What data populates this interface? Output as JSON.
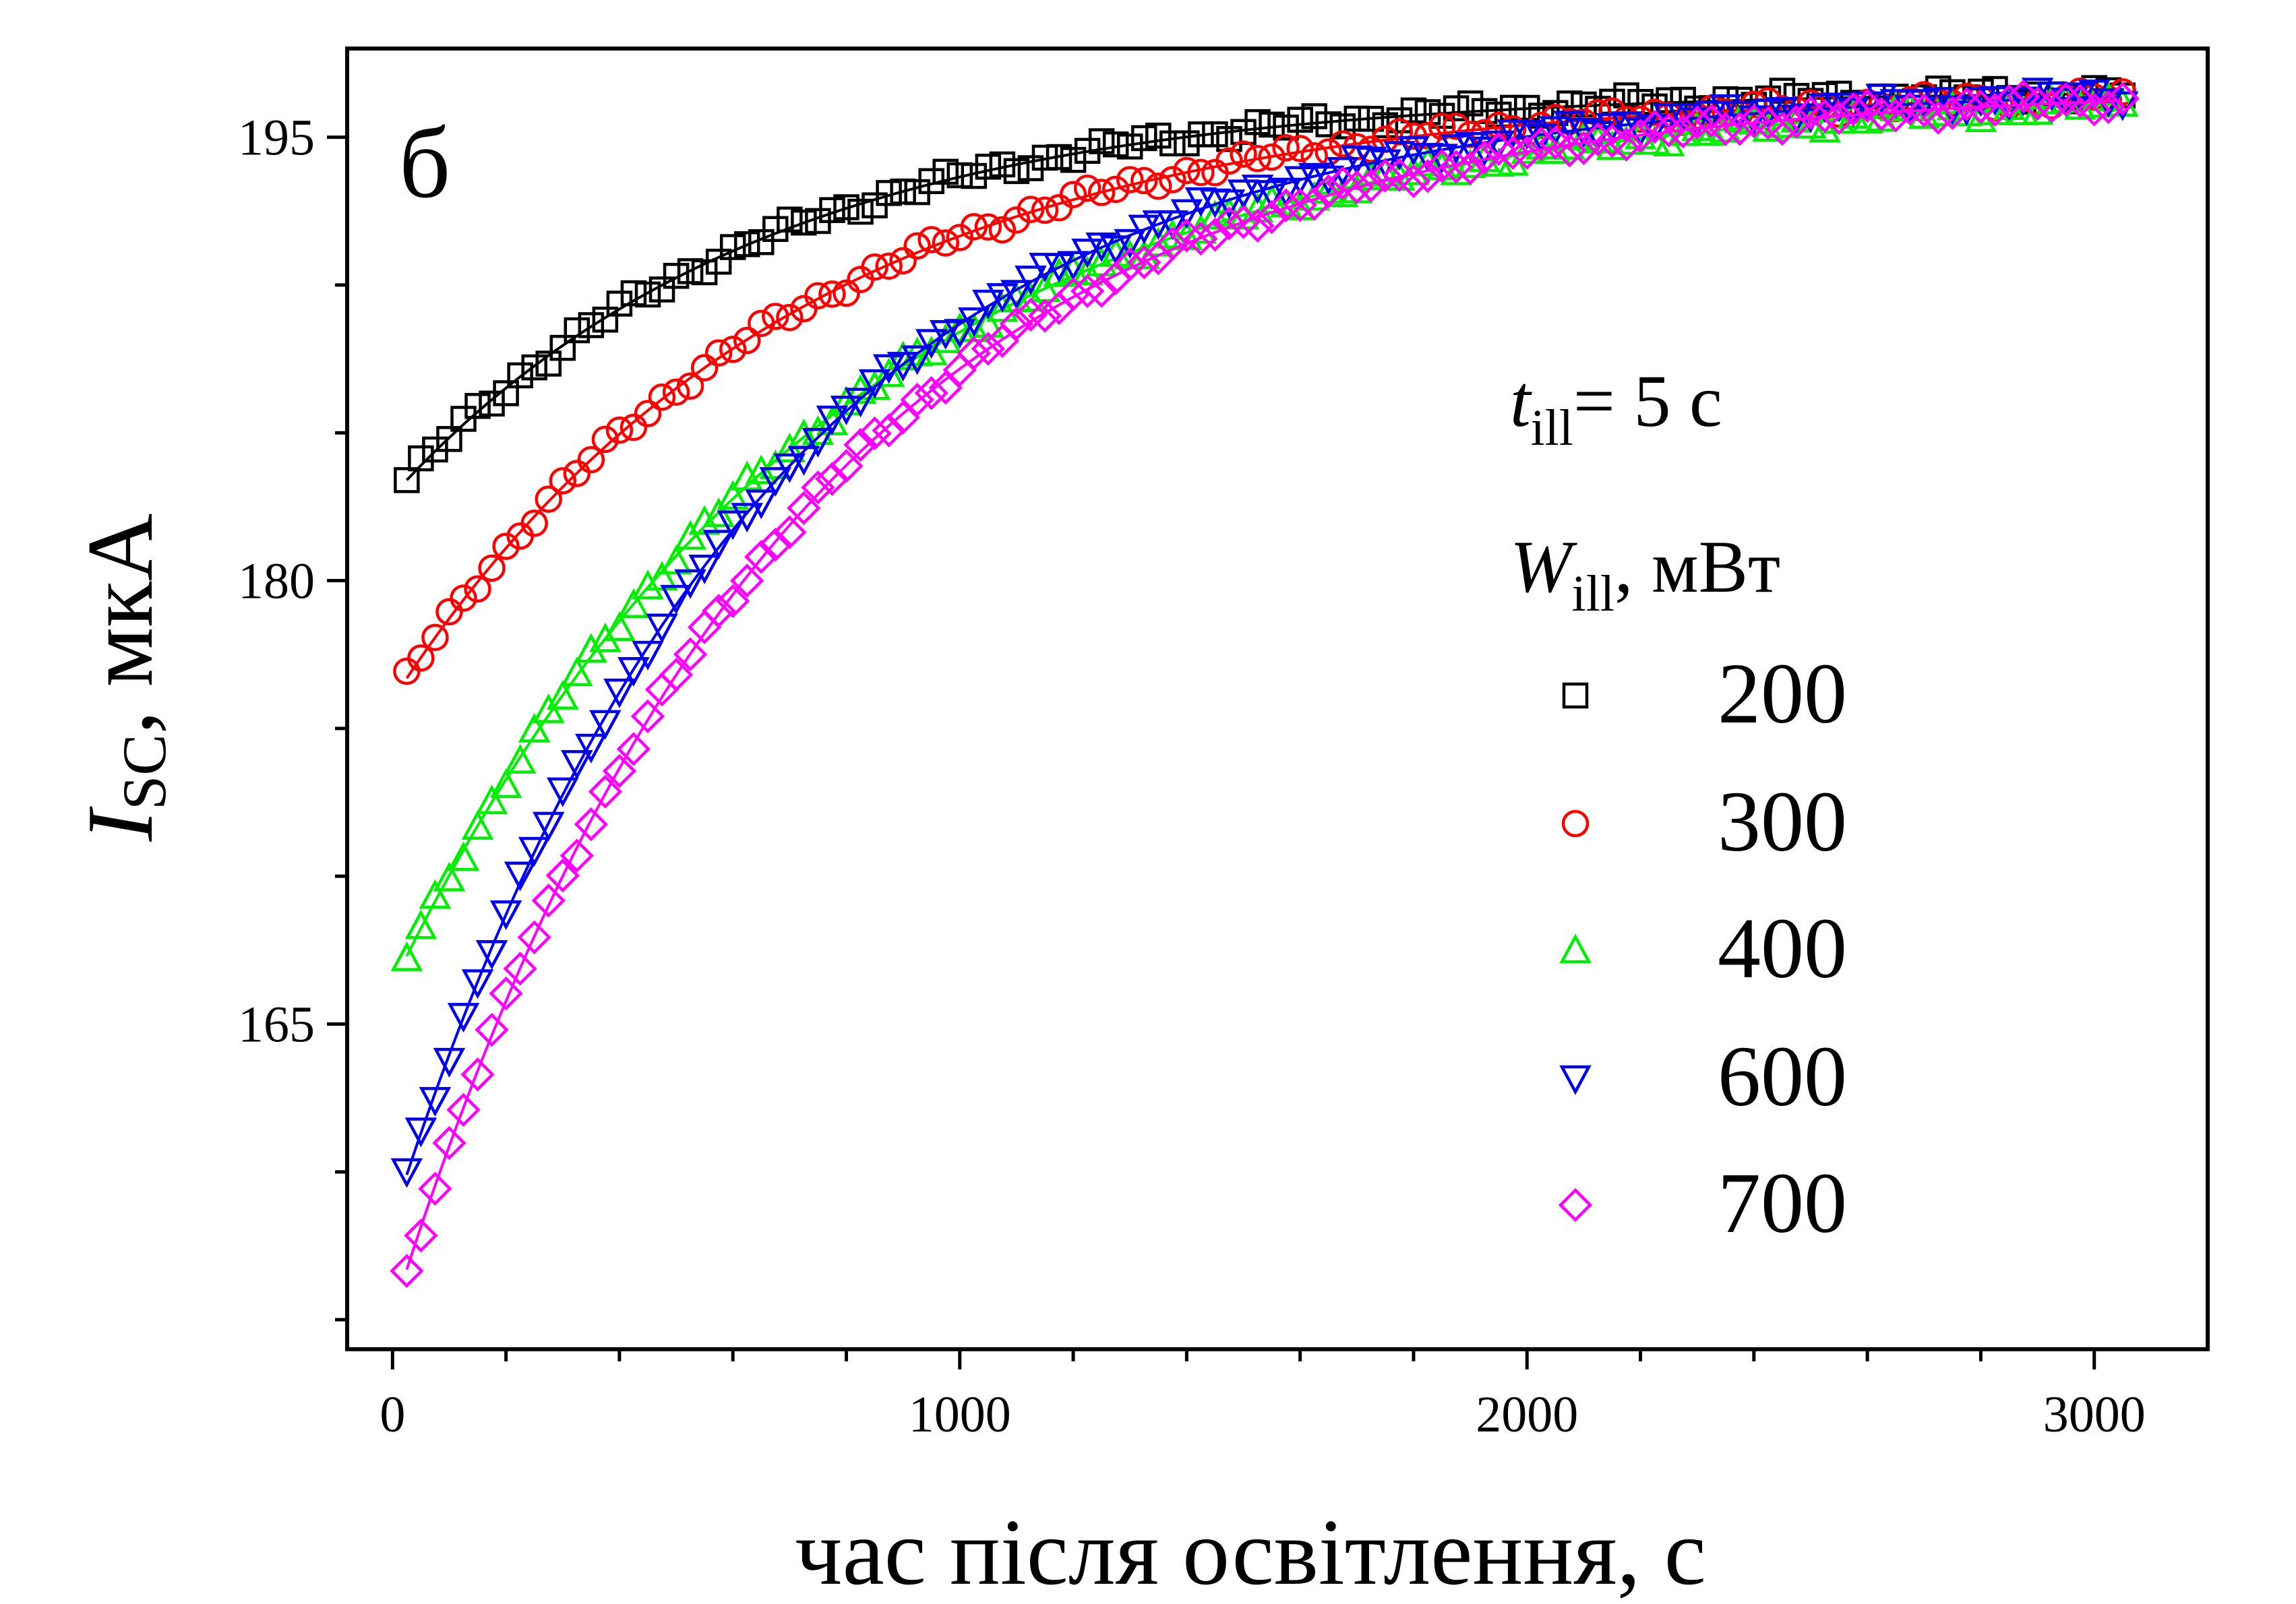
{
  "chart_data": {
    "type": "scatter",
    "panel_label": "б",
    "xlabel": "час після освітлення, с",
    "ylabel_main": "I",
    "ylabel_sub": "SC",
    "ylabel_rest": ", мкА",
    "xlim": [
      -80,
      3200
    ],
    "ylim": [
      154,
      198
    ],
    "x_ticks": [
      0,
      1000,
      2000,
      3000
    ],
    "x_tick_labels": [
      "0",
      "1000",
      "2000",
      "3000"
    ],
    "y_ticks": [
      165,
      180,
      195
    ],
    "y_tick_labels": [
      "165",
      "180",
      "195"
    ],
    "legend": {
      "position": "right",
      "line1_main": "t",
      "line1_sub": "ill",
      "line1_rest": "= 5 с",
      "line2_main": "W",
      "line2_sub": "ill",
      "line2_rest": ", мВт"
    },
    "series": [
      {
        "name": "200",
        "marker": "square",
        "color": "#000000",
        "y_start": 183.4,
        "y_end": 196.6,
        "tau": 650
      },
      {
        "name": "300",
        "marker": "circle",
        "color": "#ff0000",
        "y_start": 176.7,
        "y_end": 196.6,
        "tau": 700
      },
      {
        "name": "400",
        "marker": "triangle-up",
        "color": "#00ee00",
        "y_start": 167.3,
        "y_end": 196.7,
        "tau": 770
      },
      {
        "name": "600",
        "marker": "triangle-down",
        "color": "#0000ee",
        "y_start": 159.9,
        "y_end": 196.7,
        "tau": 640
      },
      {
        "name": "700",
        "marker": "diamond",
        "color": "#ff00ff",
        "y_start": 156.7,
        "y_end": 196.7,
        "tau": 680
      }
    ],
    "x_range": [
      25,
      3050
    ]
  }
}
